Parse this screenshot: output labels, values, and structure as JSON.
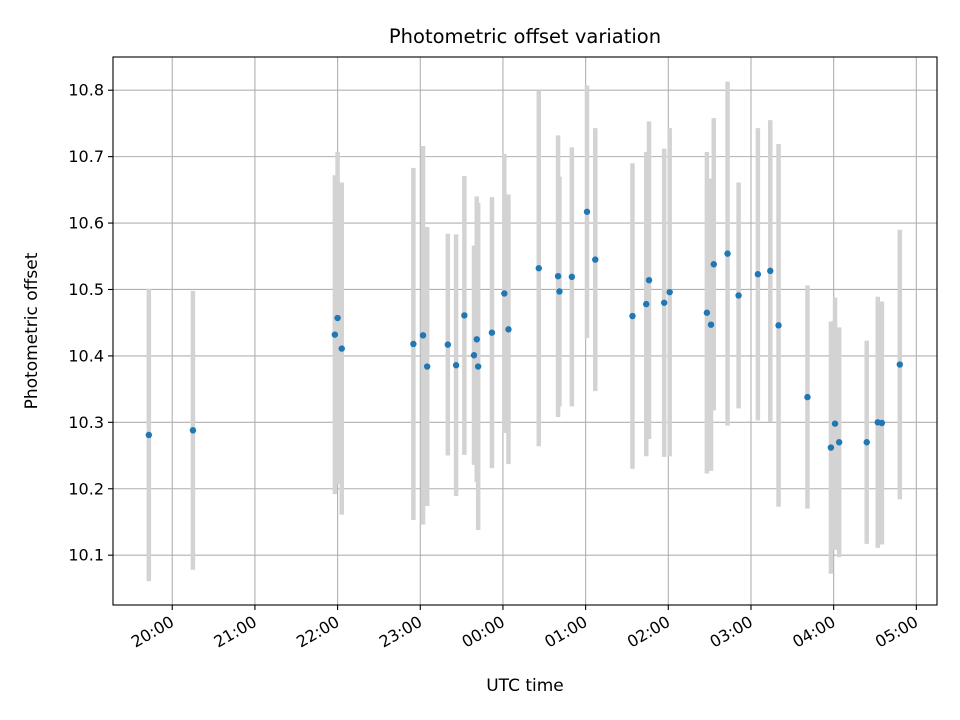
{
  "chart_data": {
    "type": "scatter",
    "title": "Photometric offset variation",
    "xlabel": "UTC time",
    "ylabel": "Photometric offset",
    "grid": true,
    "legend": "none",
    "xlim": [
      "2000-01-01T19:17",
      "2000-01-02T05:15"
    ],
    "ylim": [
      10.025,
      10.85
    ],
    "x_ticks": [
      {
        "t": "2000-01-01T20:00",
        "label": "20:00"
      },
      {
        "t": "2000-01-01T21:00",
        "label": "21:00"
      },
      {
        "t": "2000-01-01T22:00",
        "label": "22:00"
      },
      {
        "t": "2000-01-01T23:00",
        "label": "23:00"
      },
      {
        "t": "2000-01-02T00:00",
        "label": "00:00"
      },
      {
        "t": "2000-01-02T01:00",
        "label": "01:00"
      },
      {
        "t": "2000-01-02T02:00",
        "label": "02:00"
      },
      {
        "t": "2000-01-02T03:00",
        "label": "03:00"
      },
      {
        "t": "2000-01-02T04:00",
        "label": "04:00"
      },
      {
        "t": "2000-01-02T05:00",
        "label": "05:00"
      }
    ],
    "y_ticks": [
      10.1,
      10.2,
      10.3,
      10.4,
      10.5,
      10.6,
      10.7,
      10.8
    ],
    "colors": {
      "point": "#1f77b4",
      "errorbar": "#d3d3d3",
      "grid": "#b0b0b0"
    },
    "series": [
      {
        "x": [
          "2000-01-01T19:43",
          "2000-01-01T20:15",
          "2000-01-01T21:58",
          "2000-01-01T22:00",
          "2000-01-01T22:03",
          "2000-01-01T22:55",
          "2000-01-01T23:02",
          "2000-01-01T23:05",
          "2000-01-01T23:20",
          "2000-01-01T23:26",
          "2000-01-01T23:32",
          "2000-01-01T23:39",
          "2000-01-01T23:41",
          "2000-01-01T23:42",
          "2000-01-01T23:52",
          "2000-01-02T00:01",
          "2000-01-02T00:04",
          "2000-01-02T00:26",
          "2000-01-02T00:40",
          "2000-01-02T00:41",
          "2000-01-02T00:50",
          "2000-01-02T01:01",
          "2000-01-02T01:07",
          "2000-01-02T01:34",
          "2000-01-02T01:44",
          "2000-01-02T01:46",
          "2000-01-02T01:57",
          "2000-01-02T02:01",
          "2000-01-02T02:28",
          "2000-01-02T02:31",
          "2000-01-02T02:33",
          "2000-01-02T02:43",
          "2000-01-02T02:51",
          "2000-01-02T03:05",
          "2000-01-02T03:14",
          "2000-01-02T03:20",
          "2000-01-02T03:41",
          "2000-01-02T03:58",
          "2000-01-02T04:01",
          "2000-01-02T04:04",
          "2000-01-02T04:24",
          "2000-01-02T04:32",
          "2000-01-02T04:35",
          "2000-01-02T04:48"
        ],
        "y": [
          10.281,
          10.288,
          10.432,
          10.457,
          10.411,
          10.418,
          10.431,
          10.384,
          10.417,
          10.386,
          10.461,
          10.401,
          10.425,
          10.384,
          10.435,
          10.494,
          10.44,
          10.532,
          10.52,
          10.497,
          10.519,
          10.617,
          10.545,
          10.46,
          10.478,
          10.514,
          10.48,
          10.496,
          10.465,
          10.447,
          10.538,
          10.554,
          10.491,
          10.523,
          10.528,
          10.446,
          10.338,
          10.262,
          10.298,
          10.27,
          10.27,
          10.3,
          10.299,
          10.387
        ],
        "yerr": [
          0.22,
          0.21,
          0.24,
          0.25,
          0.25,
          0.265,
          0.285,
          0.21,
          0.167,
          0.197,
          0.21,
          0.165,
          0.215,
          0.246,
          0.204,
          0.21,
          0.203,
          0.268,
          0.212,
          0.173,
          0.195,
          0.19,
          0.198,
          0.23,
          0.229,
          0.239,
          0.232,
          0.247,
          0.242,
          0.22,
          0.22,
          0.259,
          0.17,
          0.22,
          0.227,
          0.273,
          0.168,
          0.19,
          0.19,
          0.173,
          0.153,
          0.189,
          0.183,
          0.203
        ]
      }
    ]
  }
}
